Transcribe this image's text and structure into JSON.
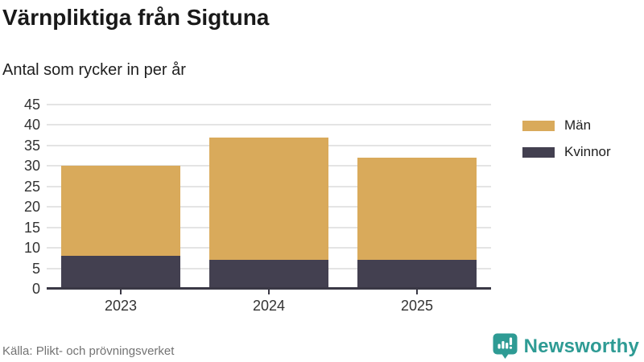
{
  "header": {
    "title": "Värnpliktiga från Sigtuna",
    "subtitle": "Antal som rycker in per år"
  },
  "chart_data": {
    "type": "bar",
    "stacked": true,
    "title": "Värnpliktiga från Sigtuna",
    "subtitle": "Antal som rycker in per år",
    "categories": [
      "2023",
      "2024",
      "2025"
    ],
    "series": [
      {
        "name": "Män",
        "color": "#d9aa5b",
        "values": [
          22,
          30,
          25
        ]
      },
      {
        "name": "Kvinnor",
        "color": "#434050",
        "values": [
          8,
          7,
          7
        ]
      }
    ],
    "stack_order_bottom_to_top": [
      "Kvinnor",
      "Män"
    ],
    "totals": [
      30,
      37,
      32
    ],
    "xlabel": "",
    "ylabel": "",
    "ylim": [
      0,
      45
    ],
    "yticks": [
      0,
      5,
      10,
      15,
      20,
      25,
      30,
      35,
      40,
      45
    ],
    "grid": true,
    "legend_position": "right"
  },
  "legend": {
    "items": [
      {
        "label": "Män",
        "color": "#d9aa5b"
      },
      {
        "label": "Kvinnor",
        "color": "#434050"
      }
    ]
  },
  "footer": {
    "source": "Källa: Plikt- och prövningsverket",
    "brand": "Newsworthy",
    "brand_color": "#2e9b94"
  },
  "colors": {
    "grid": "#e4e4e4",
    "axis": "#3a3845",
    "tick_text": "#333333"
  }
}
